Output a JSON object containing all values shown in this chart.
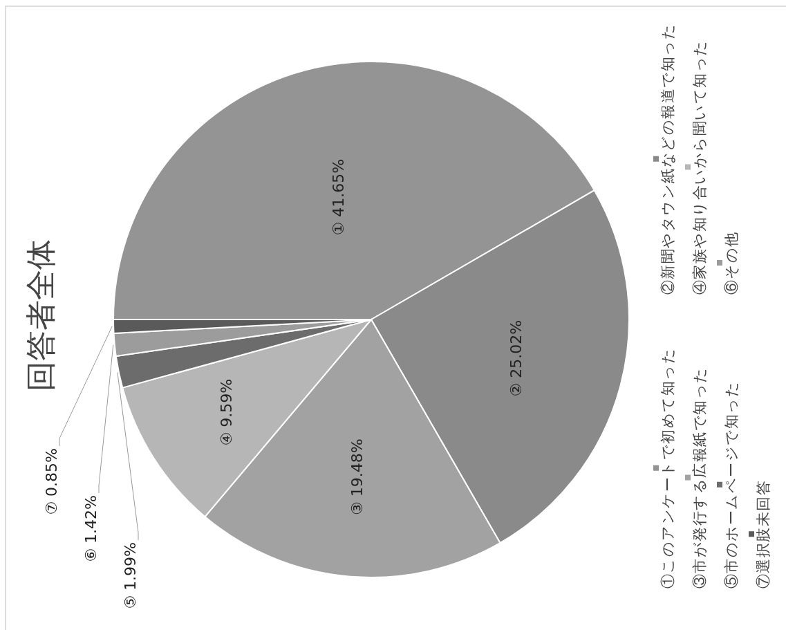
{
  "chart_data": {
    "type": "pie",
    "title": "回答者全体",
    "categories": [
      "①このアンケートで初めて知った",
      "②新聞やタウン紙などの報道で知った",
      "③市が発行する広報紙で知った",
      "④家族や知り合いから聞いて知った",
      "⑤市のホームページで知った",
      "⑥その他",
      "⑦選択肢未回答"
    ],
    "values": [
      41.65,
      25.02,
      19.48,
      9.59,
      1.99,
      1.42,
      0.85
    ],
    "colors": [
      "#949494",
      "#8a8a8a",
      "#a2a2a2",
      "#b6b6b6",
      "#6c6c6c",
      "#9c9c9c",
      "#5a5a5a"
    ],
    "value_labels": [
      "① 41.65%",
      "② 25.02%",
      "③ 19.48%",
      "④ 9.59%",
      "⑤ 1.99%",
      "⑥ 1.42%",
      "⑦ 0.85%"
    ],
    "legend": "right"
  }
}
